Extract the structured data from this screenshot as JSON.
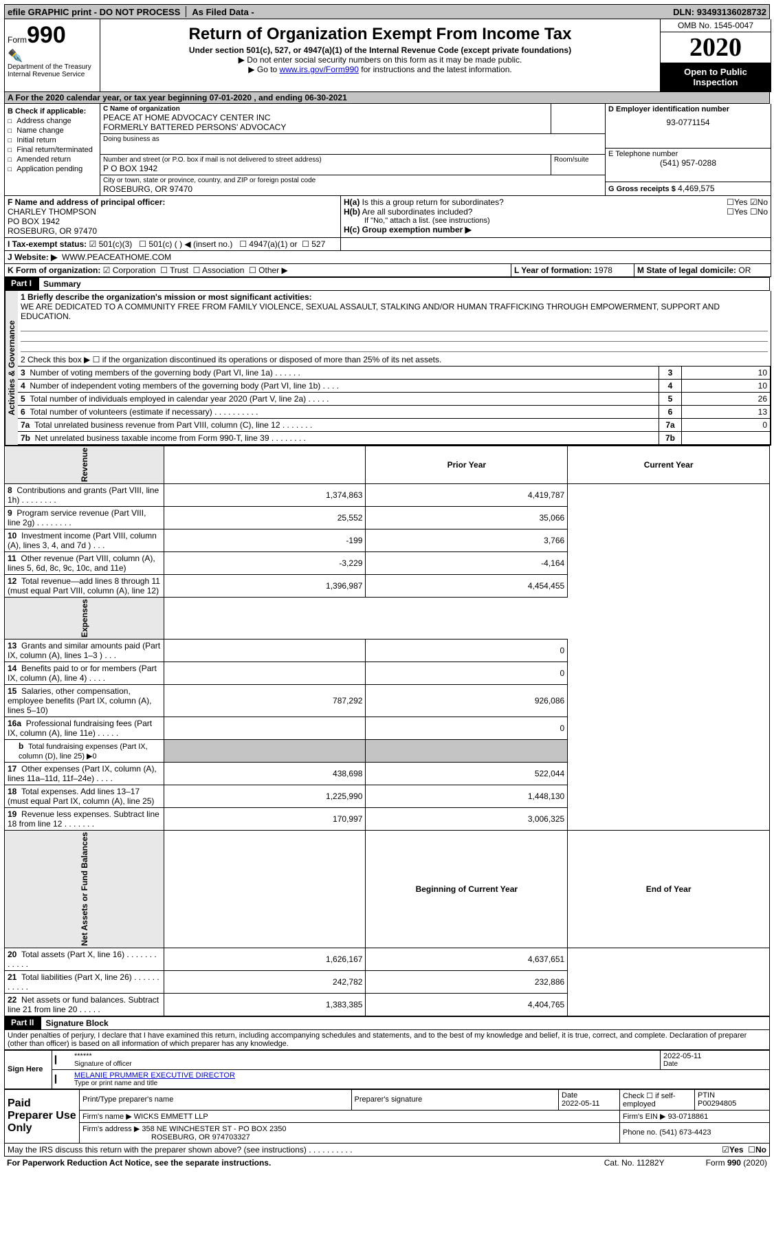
{
  "topbar": {
    "efile": "efile GRAPHIC print - DO NOT PROCESS",
    "asfiled": "As Filed Data -",
    "dln_label": "DLN:",
    "dln": "93493136028732"
  },
  "header": {
    "form_word": "Form",
    "form_no": "990",
    "dept": "Department of the Treasury\nInternal Revenue Service",
    "title": "Return of Organization Exempt From Income Tax",
    "sub1": "Under section 501(c), 527, or 4947(a)(1) of the Internal Revenue Code (except private foundations)",
    "sub2": "▶ Do not enter social security numbers on this form as it may be made public.",
    "sub3_pre": "▶ Go to ",
    "sub3_link": "www.irs.gov/Form990",
    "sub3_post": " for instructions and the latest information.",
    "omb": "OMB No. 1545-0047",
    "year": "2020",
    "open": "Open to Public Inspection"
  },
  "lineA": "A  For the 2020 calendar year, or tax year beginning 07-01-2020  , and ending 06-30-2021",
  "colB": {
    "heading": "B Check if applicable:",
    "opts": [
      "Address change",
      "Name change",
      "Initial return",
      "Final return/terminated",
      "Amended return",
      "Application pending"
    ]
  },
  "colC": {
    "name_label": "C Name of organization",
    "name1": "PEACE AT HOME ADVOCACY CENTER INC",
    "name2": "FORMERLY BATTERED PERSONS' ADVOCACY",
    "dba_label": "Doing business as",
    "addr_label": "Number and street (or P.O. box if mail is not delivered to street address)",
    "room_label": "Room/suite",
    "addr": "P O BOX 1942",
    "city_label": "City or town, state or province, country, and ZIP or foreign postal code",
    "city": "ROSEBURG, OR  97470"
  },
  "right": {
    "d_label": "D Employer identification number",
    "d_val": "93-0771154",
    "e_label": "E Telephone number",
    "e_val": "(541) 957-0288",
    "g_label": "G Gross receipts $",
    "g_val": "4,469,575"
  },
  "officer": {
    "label": "F  Name and address of principal officer:",
    "l1": "CHARLEY THOMPSON",
    "l2": "PO BOX 1942",
    "l3": "ROSEBURG, OR  97470"
  },
  "H": {
    "ha": "H(a) Is this a group return for subordinates?",
    "hb": "H(b) Are all subordinates included?",
    "hnote": "If \"No,\" attach a list. (see instructions)",
    "hc": "H(c) Group exemption number ▶",
    "yes": "Yes",
    "no": "No"
  },
  "I": {
    "label": "I  Tax-exempt status:",
    "o1": "501(c)(3)",
    "o2": "501(c) (   ) ◀ (insert no.)",
    "o3": "4947(a)(1) or",
    "o4": "527"
  },
  "J": {
    "label": "J  Website: ▶",
    "val": "WWW.PEACEATHOME.COM"
  },
  "K": {
    "label": "K Form of organization:",
    "corp": "Corporation",
    "trust": "Trust",
    "assoc": "Association",
    "other": "Other ▶"
  },
  "L": {
    "label": "L Year of formation:",
    "val": "1978"
  },
  "M": {
    "label": "M State of legal domicile:",
    "val": "OR"
  },
  "partI": {
    "tab": "Part I",
    "title": "Summary"
  },
  "mission": {
    "q": "1 Briefly describe the organization's mission or most significant activities:",
    "text": "WE ARE DEDICATED TO A COMMUNITY FREE FROM FAMILY VIOLENCE, SEXUAL ASSAULT, STALKING AND/OR HUMAN TRAFFICKING THROUGH EMPOWERMENT, SUPPORT AND EDUCATION."
  },
  "line2": "2  Check this box ▶ ☐ if the organization discontinued its operations or disposed of more than 25% of its net assets.",
  "govLines": [
    {
      "n": "3",
      "t": "Number of voting members of the governing body (Part VI, line 1a)  .   .   .   .   .   .",
      "v": "10"
    },
    {
      "n": "4",
      "t": "Number of independent voting members of the governing body (Part VI, line 1b)  .   .   .   .",
      "v": "10"
    },
    {
      "n": "5",
      "t": "Total number of individuals employed in calendar year 2020 (Part V, line 2a)  .   .   .   .   .",
      "v": "26"
    },
    {
      "n": "6",
      "t": "Total number of volunteers (estimate if necessary)  .   .   .   .   .   .   .   .   .   .",
      "v": "13"
    },
    {
      "n": "7a",
      "t": "Total unrelated business revenue from Part VIII, column (C), line 12  .   .   .   .   .   .   .",
      "v": "0"
    },
    {
      "n": "7b",
      "t": "Net unrelated business taxable income from Form 990-T, line 39  .   .   .   .   .   .   .   .",
      "v": ""
    }
  ],
  "colHeaders": {
    "prior": "Prior Year",
    "current": "Current Year"
  },
  "sections": {
    "gov": "Activities & Governance",
    "rev": "Revenue",
    "exp": "Expenses",
    "net": "Net Assets or Fund Balances"
  },
  "revLines": [
    {
      "n": "8",
      "t": "Contributions and grants (Part VIII, line 1h)  .   .   .   .   .   .   .   .",
      "p": "1,374,863",
      "c": "4,419,787"
    },
    {
      "n": "9",
      "t": "Program service revenue (Part VIII, line 2g)  .   .   .   .   .   .   .   .",
      "p": "25,552",
      "c": "35,066"
    },
    {
      "n": "10",
      "t": "Investment income (Part VIII, column (A), lines 3, 4, and 7d )  .   .   .",
      "p": "-199",
      "c": "3,766"
    },
    {
      "n": "11",
      "t": "Other revenue (Part VIII, column (A), lines 5, 6d, 8c, 9c, 10c, and 11e)",
      "p": "-3,229",
      "c": "-4,164"
    },
    {
      "n": "12",
      "t": "Total revenue—add lines 8 through 11 (must equal Part VIII, column (A), line 12)",
      "p": "1,396,987",
      "c": "4,454,455"
    }
  ],
  "expLines": [
    {
      "n": "13",
      "t": "Grants and similar amounts paid (Part IX, column (A), lines 1–3 )  .   .   .",
      "p": "",
      "c": "0"
    },
    {
      "n": "14",
      "t": "Benefits paid to or for members (Part IX, column (A), line 4)  .   .   .   .",
      "p": "",
      "c": "0"
    },
    {
      "n": "15",
      "t": "Salaries, other compensation, employee benefits (Part IX, column (A), lines 5–10)",
      "p": "787,292",
      "c": "926,086"
    },
    {
      "n": "16a",
      "t": "Professional fundraising fees (Part IX, column (A), line 11e)  .   .   .   .   .",
      "p": "",
      "c": "0"
    },
    {
      "n": "b",
      "t": "Total fundraising expenses (Part IX, column (D), line 25) ▶0",
      "p": "SHADE",
      "c": "SHADE",
      "indent": true,
      "small": true
    },
    {
      "n": "17",
      "t": "Other expenses (Part IX, column (A), lines 11a–11d, 11f–24e)  .   .   .   .",
      "p": "438,698",
      "c": "522,044"
    },
    {
      "n": "18",
      "t": "Total expenses. Add lines 13–17 (must equal Part IX, column (A), line 25)",
      "p": "1,225,990",
      "c": "1,448,130"
    },
    {
      "n": "19",
      "t": "Revenue less expenses. Subtract line 18 from line 12  .   .   .   .   .   .   .",
      "p": "170,997",
      "c": "3,006,325"
    }
  ],
  "netHeaders": {
    "begin": "Beginning of Current Year",
    "end": "End of Year"
  },
  "netLines": [
    {
      "n": "20",
      "t": "Total assets (Part X, line 16)  .   .   .   .   .   .   .   .   .   .   .   .",
      "p": "1,626,167",
      "c": "4,637,651"
    },
    {
      "n": "21",
      "t": "Total liabilities (Part X, line 26)  .   .   .   .   .   .   .   .   .   .   .",
      "p": "242,782",
      "c": "232,886"
    },
    {
      "n": "22",
      "t": "Net assets or fund balances. Subtract line 21 from line 20  .   .   .   .   .",
      "p": "1,383,385",
      "c": "4,404,765"
    }
  ],
  "partII": {
    "tab": "Part II",
    "title": "Signature Block"
  },
  "perjury": "Under penalties of perjury, I declare that I have examined this return, including accompanying schedules and statements, and to the best of my knowledge and belief, it is true, correct, and complete. Declaration of preparer (other than officer) is based on all information of which preparer has any knowledge.",
  "sign": {
    "here": "Sign Here",
    "stars": "******",
    "sig_off": "Signature of officer",
    "date": "2022-05-11",
    "date_lbl": "Date",
    "name": "MELANIE PRUMMER  EXECUTIVE DIRECTOR",
    "name_lbl": "Type or print name and title"
  },
  "prep": {
    "label": "Paid Preparer Use Only",
    "h1": "Print/Type preparer's name",
    "h2": "Preparer's signature",
    "h3": "Date",
    "h3v": "2022-05-11",
    "h4": "Check ☐ if self-employed",
    "h5": "PTIN",
    "h5v": "P00294805",
    "firm_lbl": "Firm's name    ▶",
    "firm": "WICKS EMMETT LLP",
    "ein_lbl": "Firm's EIN ▶",
    "ein": "93-0718861",
    "addr_lbl": "Firm's address ▶",
    "addr1": "358 NE WINCHESTER ST - PO BOX 2350",
    "addr2": "ROSEBURG, OR  974703327",
    "phone_lbl": "Phone no.",
    "phone": "(541) 673-4423"
  },
  "footer": {
    "discuss": "May the IRS discuss this return with the preparer shown above? (see instructions)   .   .   .   .   .   .   .   .   .   .",
    "yes": "Yes",
    "no": "No",
    "paperwork": "For Paperwork Reduction Act Notice, see the separate instructions.",
    "cat": "Cat. No. 11282Y",
    "form": "Form 990 (2020)"
  }
}
